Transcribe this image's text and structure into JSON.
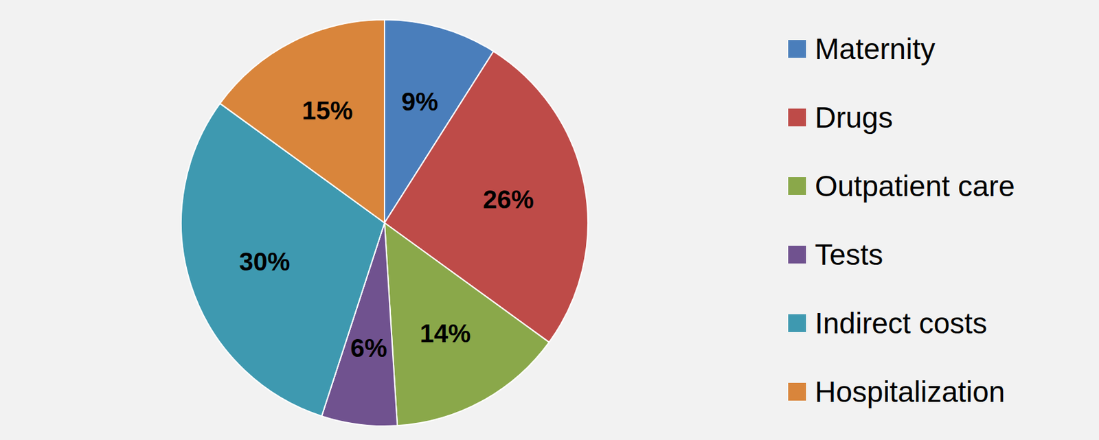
{
  "chart_data": {
    "type": "pie",
    "categories": [
      "Maternity",
      "Drugs",
      "Outpatient care",
      "Tests",
      "Indirect costs",
      "Hospitalization"
    ],
    "values": [
      9,
      26,
      14,
      6,
      30,
      15
    ],
    "value_labels": [
      "9%",
      "26%",
      "14%",
      "6%",
      "30%",
      "15%"
    ],
    "colors": [
      "#4a7ebb",
      "#be4b48",
      "#8aa84a",
      "#70528f",
      "#3e99b0",
      "#d9853b"
    ],
    "data_labels": true,
    "legend": "right"
  }
}
